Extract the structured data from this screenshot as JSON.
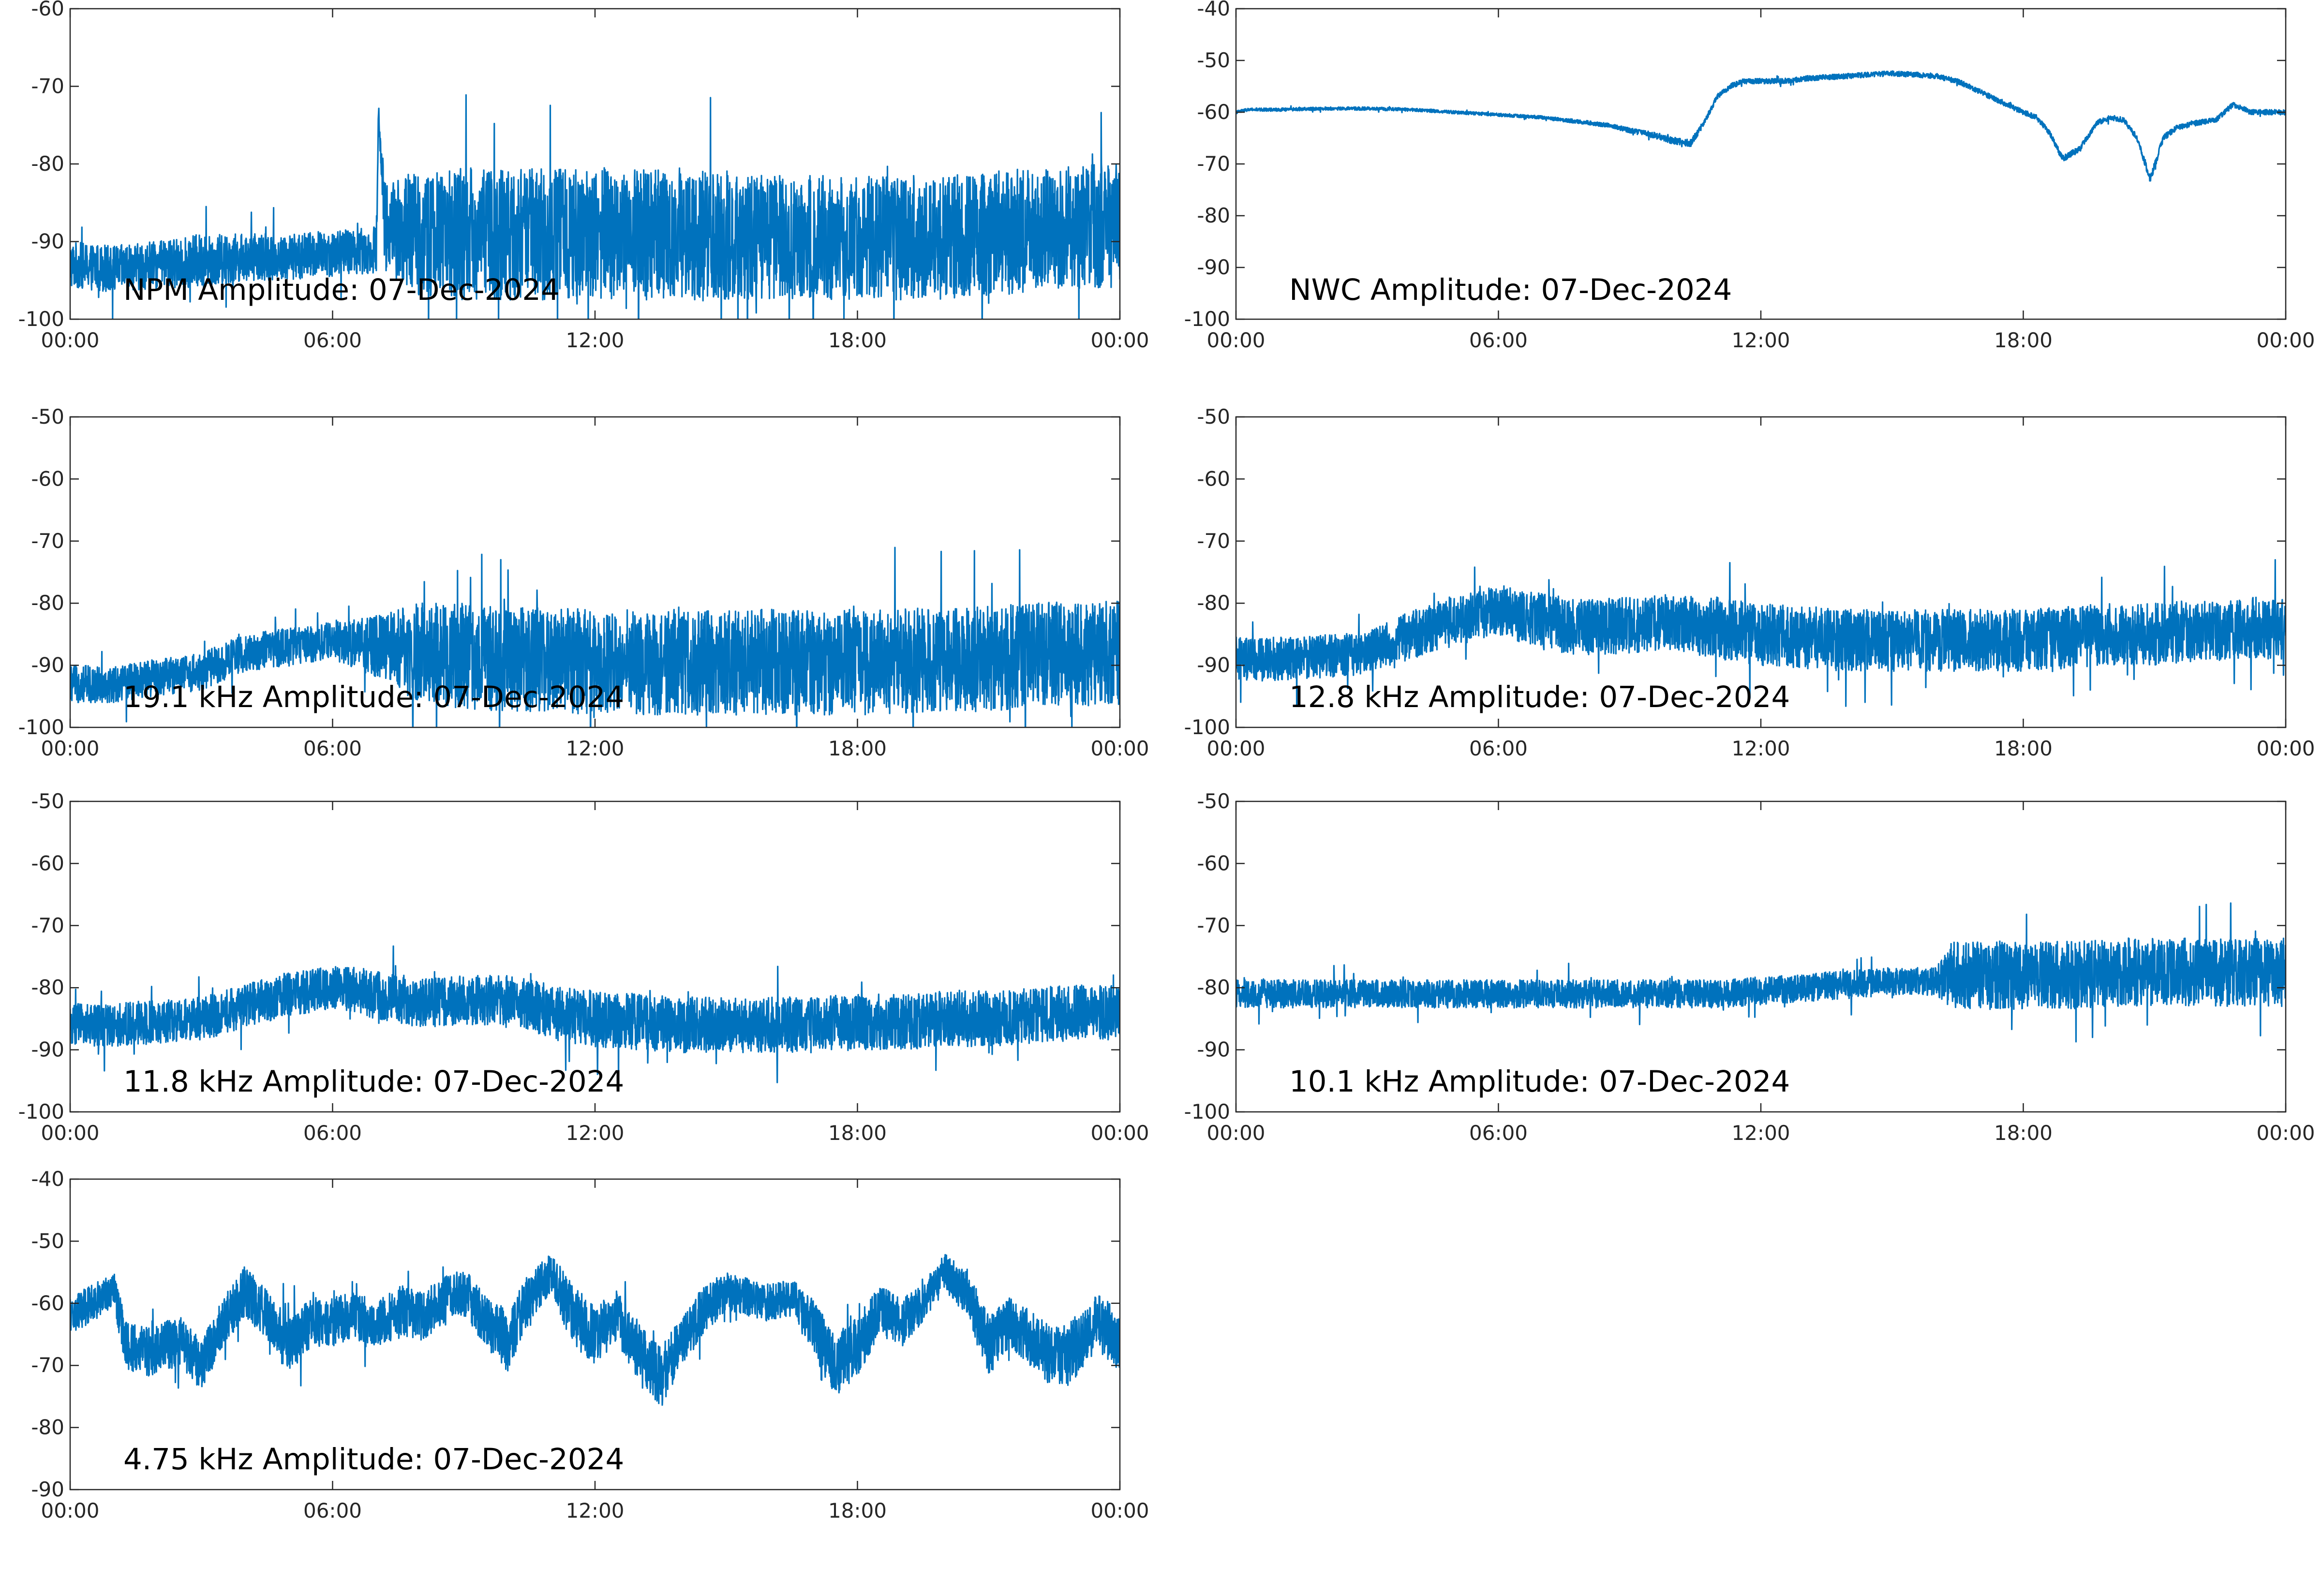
{
  "figure": {
    "background": "#ffffff",
    "line_color": "#0072bd",
    "axis_color": "#262626"
  },
  "chart_data": [
    {
      "type": "line",
      "title": "NPM Amplitude: 07-Dec-2024",
      "xlim": [
        0,
        24
      ],
      "ylim": [
        -100,
        -60
      ],
      "xticks": [
        0,
        6,
        12,
        18,
        24
      ],
      "xticklabels": [
        "00:00",
        "06:00",
        "12:00",
        "18:00",
        "00:00"
      ],
      "yticks": [
        -100,
        -90,
        -80,
        -70,
        -60
      ],
      "yticklabels": [
        "-100",
        "-90",
        "-80",
        "-70",
        "-60"
      ],
      "grid": false,
      "series": [
        {
          "color": "#0072bd",
          "x": [
            0,
            1,
            2,
            3,
            4,
            5,
            6,
            7,
            7.05,
            7.2,
            8,
            9,
            10,
            11,
            12,
            13,
            14,
            15,
            16,
            17,
            18,
            19,
            20,
            21,
            22,
            23,
            24
          ],
          "y": [
            -93,
            -93.5,
            -93,
            -92.5,
            -92,
            -92,
            -91.5,
            -91,
            -73,
            -88,
            -89,
            -89,
            -89,
            -89,
            -89,
            -89,
            -89,
            -89.5,
            -89.5,
            -89.5,
            -89.5,
            -89.5,
            -89.5,
            -89,
            -88.5,
            -88,
            -88
          ],
          "noise": [
            6,
            6,
            6,
            7,
            6,
            6,
            6,
            6,
            2,
            12,
            16,
            17,
            17,
            17,
            17,
            17,
            17,
            16,
            16,
            16,
            16,
            16,
            16,
            16,
            16,
            16,
            16
          ]
        }
      ]
    },
    {
      "type": "line",
      "title": "NWC Amplitude: 07-Dec-2024",
      "xlim": [
        0,
        24
      ],
      "ylim": [
        -100,
        -40
      ],
      "xticks": [
        0,
        6,
        12,
        18,
        24
      ],
      "xticklabels": [
        "00:00",
        "06:00",
        "12:00",
        "18:00",
        "00:00"
      ],
      "yticks": [
        -100,
        -90,
        -80,
        -70,
        -60,
        -50,
        -40
      ],
      "yticklabels": [
        "-100",
        "-90",
        "-80",
        "-70",
        "-60",
        "-50",
        "-40"
      ],
      "grid": false,
      "series": [
        {
          "color": "#0072bd",
          "x": [
            0,
            0.3,
            1,
            2,
            3,
            4,
            5,
            6,
            7,
            8,
            8.5,
            9,
            9.3,
            9.6,
            10,
            10.4,
            10.7,
            11,
            11.3,
            11.6,
            12,
            12.5,
            13,
            14,
            15,
            16,
            16.5,
            17,
            17.5,
            18,
            18.3,
            18.6,
            18.9,
            19.3,
            19.7,
            20,
            20.3,
            20.6,
            20.9,
            21.2,
            21.5,
            22,
            22.4,
            22.8,
            23.2,
            24
          ],
          "y": [
            -60,
            -59.5,
            -59.5,
            -59.3,
            -59.3,
            -59.5,
            -60,
            -60.5,
            -61,
            -62,
            -62.5,
            -63.5,
            -64,
            -64.5,
            -65.5,
            -66,
            -62,
            -57,
            -55,
            -54,
            -54,
            -54,
            -53.5,
            -53,
            -52.5,
            -53,
            -54,
            -56,
            -58,
            -60,
            -61,
            -64,
            -69,
            -67,
            -62,
            -61,
            -61.5,
            -65,
            -73,
            -65,
            -63,
            -62,
            -61.5,
            -58.5,
            -60,
            -60
          ],
          "noise": [
            0.6,
            0.6,
            0.6,
            0.6,
            0.6,
            0.6,
            0.6,
            0.6,
            0.6,
            0.8,
            0.8,
            1,
            1,
            1.2,
            1.4,
            1.4,
            1.2,
            1,
            1,
            1,
            1,
            1,
            1,
            1,
            1,
            1,
            1,
            1,
            1,
            1,
            1,
            1,
            1.2,
            1.2,
            1,
            1,
            1,
            1.2,
            1.5,
            1.2,
            1,
            1,
            1,
            1,
            1,
            1
          ]
        }
      ]
    },
    {
      "type": "line",
      "title": "19.1 kHz Amplitude: 07-Dec-2024",
      "xlim": [
        0,
        24
      ],
      "ylim": [
        -100,
        -50
      ],
      "xticks": [
        0,
        6,
        12,
        18,
        24
      ],
      "xticklabels": [
        "00:00",
        "06:00",
        "12:00",
        "18:00",
        "00:00"
      ],
      "yticks": [
        -100,
        -90,
        -80,
        -70,
        -60,
        -50
      ],
      "yticklabels": [
        "-100",
        "-90",
        "-80",
        "-70",
        "-60",
        "-50"
      ],
      "grid": false,
      "series": [
        {
          "color": "#0072bd",
          "x": [
            0,
            1,
            2,
            3,
            4,
            5,
            6,
            7,
            8,
            9,
            10,
            11,
            12,
            13,
            14,
            15,
            16,
            17,
            18,
            19,
            20,
            21,
            22,
            23,
            24
          ],
          "y": [
            -93,
            -93,
            -92,
            -91,
            -88,
            -87,
            -86,
            -87,
            -88,
            -88.5,
            -89,
            -89,
            -89.5,
            -89.5,
            -89.5,
            -89.5,
            -89.5,
            -89.5,
            -89.5,
            -89.5,
            -89,
            -89,
            -88.5,
            -88,
            -88
          ],
          "noise": [
            6,
            6,
            6,
            6,
            6,
            6,
            6,
            10,
            16,
            17,
            17,
            17,
            17,
            17,
            17,
            17,
            17,
            17,
            17,
            17,
            17,
            17,
            17,
            17,
            17
          ]
        }
      ]
    },
    {
      "type": "line",
      "title": "12.8 kHz Amplitude: 07-Dec-2024",
      "xlim": [
        0,
        24
      ],
      "ylim": [
        -100,
        -50
      ],
      "xticks": [
        0,
        6,
        12,
        18,
        24
      ],
      "xticklabels": [
        "00:00",
        "06:00",
        "12:00",
        "18:00",
        "00:00"
      ],
      "yticks": [
        -100,
        -90,
        -80,
        -70,
        -60,
        -50
      ],
      "yticklabels": [
        "-100",
        "-90",
        "-80",
        "-70",
        "-60",
        "-50"
      ],
      "grid": false,
      "series": [
        {
          "color": "#0072bd",
          "x": [
            0,
            1,
            2,
            3,
            4,
            5,
            6,
            7,
            8,
            9,
            10,
            11,
            12,
            13,
            14,
            15,
            16,
            17,
            18,
            19,
            20,
            21,
            22,
            23,
            24
          ],
          "y": [
            -89,
            -89,
            -88.5,
            -88,
            -85,
            -83,
            -81,
            -83,
            -84,
            -83.5,
            -83,
            -84,
            -85,
            -85.5,
            -86,
            -86,
            -86,
            -86,
            -86,
            -85.5,
            -85,
            -85,
            -84.5,
            -84,
            -84
          ],
          "noise": [
            7,
            7,
            7,
            7,
            8,
            8,
            8,
            9,
            9,
            9,
            9,
            10,
            10,
            10,
            10,
            10,
            10,
            10,
            10,
            10,
            10,
            10,
            10,
            10,
            10
          ]
        }
      ]
    },
    {
      "type": "line",
      "title": "11.8 kHz Amplitude: 07-Dec-2024",
      "xlim": [
        0,
        24
      ],
      "ylim": [
        -100,
        -50
      ],
      "xticks": [
        0,
        6,
        12,
        18,
        24
      ],
      "xticklabels": [
        "00:00",
        "06:00",
        "12:00",
        "18:00",
        "00:00"
      ],
      "yticks": [
        -100,
        -90,
        -80,
        -70,
        -60,
        -50
      ],
      "yticklabels": [
        "-100",
        "-90",
        "-80",
        "-70",
        "-60",
        "-50"
      ],
      "grid": false,
      "series": [
        {
          "color": "#0072bd",
          "x": [
            0,
            1,
            2,
            3,
            4,
            5,
            6,
            7,
            8,
            9,
            10,
            11,
            12,
            13,
            14,
            15,
            16,
            17,
            18,
            19,
            20,
            21,
            22,
            23,
            24
          ],
          "y": [
            -86,
            -86,
            -85.5,
            -85,
            -83,
            -81,
            -80,
            -81,
            -82.5,
            -82,
            -82,
            -84,
            -85,
            -85.5,
            -86,
            -86,
            -86,
            -86,
            -85.5,
            -85.5,
            -85,
            -85,
            -84.5,
            -84,
            -84
          ],
          "noise": [
            7,
            7,
            7,
            7,
            7,
            7,
            7,
            8,
            8,
            8,
            8,
            9,
            9,
            9,
            9,
            9,
            9,
            9,
            9,
            9,
            9,
            9,
            9,
            9,
            9
          ]
        }
      ]
    },
    {
      "type": "line",
      "title": "10.1 kHz Amplitude: 07-Dec-2024",
      "xlim": [
        0,
        24
      ],
      "ylim": [
        -100,
        -50
      ],
      "xticks": [
        0,
        6,
        12,
        18,
        24
      ],
      "xticklabels": [
        "00:00",
        "06:00",
        "12:00",
        "18:00",
        "00:00"
      ],
      "yticks": [
        -100,
        -90,
        -80,
        -70,
        -60,
        -50
      ],
      "yticklabels": [
        "-100",
        "-90",
        "-80",
        "-70",
        "-60",
        "-50"
      ],
      "grid": false,
      "series": [
        {
          "color": "#0072bd",
          "x": [
            0,
            1,
            2,
            3,
            4,
            5,
            6,
            7,
            8,
            9,
            10,
            11,
            12,
            13,
            14,
            15,
            16,
            16.3,
            17,
            18,
            19,
            20,
            21,
            22,
            23,
            24
          ],
          "y": [
            -81,
            -81,
            -81,
            -81,
            -81,
            -81,
            -81,
            -81,
            -81,
            -81,
            -81,
            -81,
            -80.5,
            -80,
            -79.5,
            -79,
            -79,
            -78,
            -78,
            -78,
            -78,
            -77.5,
            -77.5,
            -77.5,
            -77.5,
            -77.5
          ],
          "noise": [
            4.5,
            4.5,
            4.5,
            4.5,
            4.5,
            4.5,
            4.5,
            4.5,
            4.5,
            4.5,
            4.5,
            4.5,
            4.5,
            4.5,
            4.5,
            4.5,
            4.5,
            11,
            11,
            11,
            11,
            11,
            11,
            11,
            11,
            11
          ]
        }
      ]
    },
    {
      "type": "line",
      "title": "4.75 kHz Amplitude: 07-Dec-2024",
      "xlim": [
        0,
        24
      ],
      "ylim": [
        -90,
        -40
      ],
      "xticks": [
        0,
        6,
        12,
        18,
        24
      ],
      "xticklabels": [
        "00:00",
        "06:00",
        "12:00",
        "18:00",
        "00:00"
      ],
      "yticks": [
        -90,
        -80,
        -70,
        -60,
        -50,
        -40
      ],
      "yticklabels": [
        "-90",
        "-80",
        "-70",
        "-60",
        "-50",
        "-40"
      ],
      "grid": false,
      "series": [
        {
          "color": "#0072bd",
          "x": [
            0,
            0.5,
            1,
            1.3,
            1.8,
            2.5,
            3,
            3.5,
            4,
            4.5,
            5,
            5.5,
            6,
            6.5,
            7,
            7.5,
            8,
            8.5,
            9,
            9.5,
            10,
            10.5,
            11,
            11.5,
            12,
            12.5,
            13,
            13.5,
            14,
            14.5,
            15,
            15.5,
            16,
            16.5,
            17,
            17.5,
            18,
            18.5,
            19,
            19.5,
            20,
            20.5,
            21,
            21.5,
            22,
            22.5,
            23,
            23.5,
            24
          ],
          "y": [
            -62,
            -60,
            -58,
            -67,
            -68,
            -66,
            -70,
            -63,
            -58,
            -62,
            -67,
            -63,
            -63,
            -62,
            -64,
            -61,
            -62,
            -60,
            -58,
            -63,
            -66,
            -59,
            -55,
            -62,
            -65,
            -62,
            -68,
            -72,
            -66,
            -61,
            -58,
            -59,
            -60,
            -59,
            -64,
            -70,
            -67,
            -61,
            -63,
            -60,
            -55,
            -58,
            -67,
            -63,
            -66,
            -69,
            -67,
            -63,
            -66
          ],
          "noise": [
            6,
            6,
            6,
            8,
            8,
            8,
            8,
            8,
            8,
            8,
            9,
            8,
            8,
            8,
            8,
            8,
            8,
            8,
            8,
            8,
            10,
            8,
            6,
            10,
            10,
            8,
            10,
            10,
            8,
            8,
            6,
            6,
            6,
            6,
            9,
            10,
            10,
            8,
            8,
            6,
            6,
            8,
            10,
            8,
            9,
            10,
            10,
            9,
            10
          ]
        }
      ]
    }
  ]
}
